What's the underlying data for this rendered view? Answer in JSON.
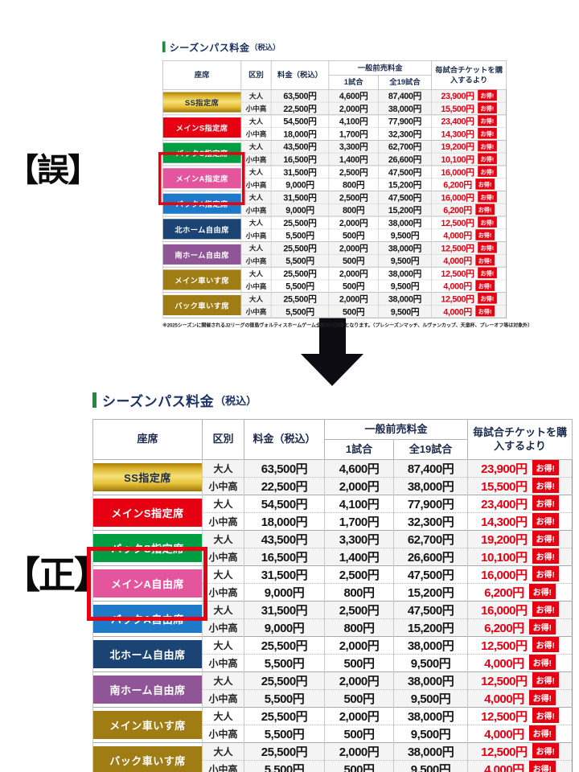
{
  "page": {
    "wrong_label": "【誤】",
    "correct_label": "【正】"
  },
  "table_title": {
    "main": "シーズンパス料金",
    "paren": "（税込）"
  },
  "columns": {
    "seat": "座席",
    "category": "区別",
    "price": "料金（税込）",
    "advance_group": "一般前売料金",
    "one_match": "1試合",
    "all_matches": "全19試合",
    "per_match": "毎試合チケットを購入するより"
  },
  "badge": "お得!",
  "footnote": "※2025シーズンに開催されるJ2リーグの徳島ヴォルティスホームゲーム全試合が対象となります。（プレシーズンマッチ、ルヴァンカップ、天皇杯、プレーオフ等は対象外）",
  "colors": {
    "accent_red": "#e60012",
    "title_navy": "#1c3266",
    "title_green_bar": "#1e8a3e",
    "arrow": "#0c0c12",
    "highlight_border": "#e60012"
  },
  "rows": [
    {
      "seat_wrong": "SS指定席",
      "seat_correct": "SS指定席",
      "gold": true,
      "color": "gold-gradient",
      "highlight": false,
      "sub": [
        {
          "category": "大人",
          "price": "63,500円",
          "one_match": "4,600円",
          "all_matches": "87,400円",
          "savings": "23,900円"
        },
        {
          "category": "小中高",
          "price": "22,500円",
          "one_match": "2,000円",
          "all_matches": "38,000円",
          "savings": "15,500円"
        }
      ]
    },
    {
      "seat_wrong": "メインS指定席",
      "seat_correct": "メインS指定席",
      "gold": false,
      "color": "#e60012",
      "highlight": false,
      "sub": [
        {
          "category": "大人",
          "price": "54,500円",
          "one_match": "4,100円",
          "all_matches": "77,900円",
          "savings": "23,400円"
        },
        {
          "category": "小中高",
          "price": "18,000円",
          "one_match": "1,700円",
          "all_matches": "32,300円",
          "savings": "14,300円"
        }
      ]
    },
    {
      "seat_wrong": "バックS指定席",
      "seat_correct": "バックS指定席",
      "gold": false,
      "color": "#009e43",
      "highlight": false,
      "sub": [
        {
          "category": "大人",
          "price": "43,500円",
          "one_match": "3,300円",
          "all_matches": "62,700円",
          "savings": "19,200円"
        },
        {
          "category": "小中高",
          "price": "16,500円",
          "one_match": "1,400円",
          "all_matches": "26,600円",
          "savings": "10,100円"
        }
      ]
    },
    {
      "seat_wrong": "メインA指定席",
      "seat_correct": "メインA自由席",
      "gold": false,
      "color": "#e5559d",
      "highlight": true,
      "sub": [
        {
          "category": "大人",
          "price": "31,500円",
          "one_match": "2,500円",
          "all_matches": "47,500円",
          "savings": "16,000円"
        },
        {
          "category": "小中高",
          "price": "9,000円",
          "one_match": "800円",
          "all_matches": "15,200円",
          "savings": "6,200円"
        }
      ]
    },
    {
      "seat_wrong": "バックA指定席",
      "seat_correct": "バックA自由席",
      "gold": false,
      "color": "#1e79c8",
      "highlight": true,
      "sub": [
        {
          "category": "大人",
          "price": "31,500円",
          "one_match": "2,500円",
          "all_matches": "47,500円",
          "savings": "16,000円"
        },
        {
          "category": "小中高",
          "price": "9,000円",
          "one_match": "800円",
          "all_matches": "15,200円",
          "savings": "6,200円"
        }
      ]
    },
    {
      "seat_wrong": "北ホーム自由席",
      "seat_correct": "北ホーム自由席",
      "gold": false,
      "color": "#1b4373",
      "highlight": false,
      "sub": [
        {
          "category": "大人",
          "price": "25,500円",
          "one_match": "2,000円",
          "all_matches": "38,000円",
          "savings": "12,500円"
        },
        {
          "category": "小中高",
          "price": "5,500円",
          "one_match": "500円",
          "all_matches": "9,500円",
          "savings": "4,000円"
        }
      ]
    },
    {
      "seat_wrong": "南ホーム自由席",
      "seat_correct": "南ホーム自由席",
      "gold": false,
      "color": "#8f5596",
      "highlight": false,
      "sub": [
        {
          "category": "大人",
          "price": "25,500円",
          "one_match": "2,000円",
          "all_matches": "38,000円",
          "savings": "12,500円"
        },
        {
          "category": "小中高",
          "price": "5,500円",
          "one_match": "500円",
          "all_matches": "9,500円",
          "savings": "4,000円"
        }
      ]
    },
    {
      "seat_wrong": "メイン車いす席",
      "seat_correct": "メイン車いす席",
      "gold": false,
      "color": "#a07c15",
      "highlight": false,
      "sub": [
        {
          "category": "大人",
          "price": "25,500円",
          "one_match": "2,000円",
          "all_matches": "38,000円",
          "savings": "12,500円"
        },
        {
          "category": "小中高",
          "price": "5,500円",
          "one_match": "500円",
          "all_matches": "9,500円",
          "savings": "4,000円"
        }
      ]
    },
    {
      "seat_wrong": "バック車いす席",
      "seat_correct": "バック車いす席",
      "gold": false,
      "color": "#a07c15",
      "highlight": false,
      "sub": [
        {
          "category": "大人",
          "price": "25,500円",
          "one_match": "2,000円",
          "all_matches": "38,000円",
          "savings": "12,500円"
        },
        {
          "category": "小中高",
          "price": "5,500円",
          "one_match": "500円",
          "all_matches": "9,500円",
          "savings": "4,000円"
        }
      ]
    }
  ]
}
